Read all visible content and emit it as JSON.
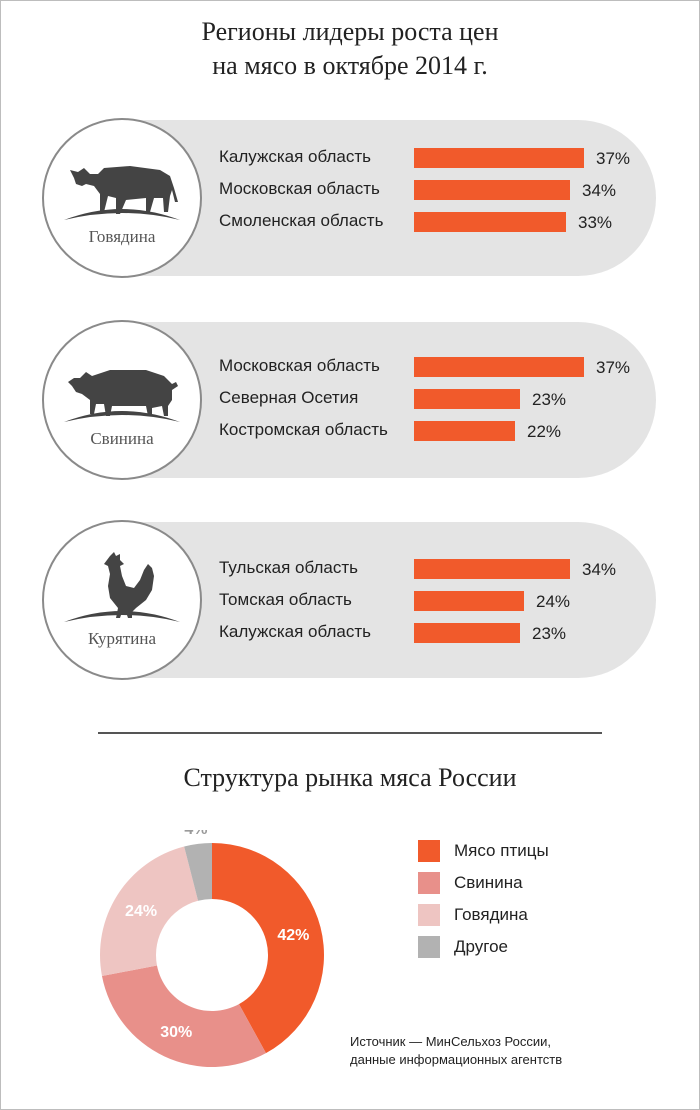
{
  "title": {
    "line1": "Регионы лидеры роста цен",
    "line2": "на мясо в октябре 2014 г."
  },
  "panels": [
    {
      "animal": "Говядина",
      "icon": "cow-icon",
      "rows": [
        {
          "region": "Калужская область",
          "pct": "37%",
          "value": 37
        },
        {
          "region": "Московская область",
          "pct": "34%",
          "value": 34
        },
        {
          "region": "Смоленская область",
          "pct": "33%",
          "value": 33
        }
      ]
    },
    {
      "animal": "Свинина",
      "icon": "pig-icon",
      "rows": [
        {
          "region": "Московская область",
          "pct": "37%",
          "value": 37
        },
        {
          "region": "Северная Осетия",
          "pct": "23%",
          "value": 23
        },
        {
          "region": "Костромская область",
          "pct": "22%",
          "value": 22
        }
      ]
    },
    {
      "animal": "Курятина",
      "icon": "rooster-icon",
      "rows": [
        {
          "region": "Тульская область",
          "pct": "34%",
          "value": 34
        },
        {
          "region": "Томская область",
          "pct": "24%",
          "value": 24
        },
        {
          "region": "Калужская область",
          "pct": "23%",
          "value": 23
        }
      ]
    }
  ],
  "market": {
    "title": "Структура рынка мяса России",
    "legend": [
      {
        "label": "Мясо птицы",
        "color": "#f15a2b"
      },
      {
        "label": "Свинина",
        "color": "#e8908a"
      },
      {
        "label": "Говядина",
        "color": "#eec5c2"
      },
      {
        "label": "Другое",
        "color": "#b2b2b2"
      }
    ],
    "source_line1": "Источник — МинСельхоз России,",
    "source_line2": "данные информационных агентств"
  },
  "chart_data": [
    {
      "type": "bar",
      "title": "Говядина",
      "categories": [
        "Калужская область",
        "Московская область",
        "Смоленская область"
      ],
      "values": [
        37,
        34,
        33
      ],
      "unit": "%"
    },
    {
      "type": "bar",
      "title": "Свинина",
      "categories": [
        "Московская область",
        "Северная Осетия",
        "Костромская область"
      ],
      "values": [
        37,
        23,
        22
      ],
      "unit": "%"
    },
    {
      "type": "bar",
      "title": "Курятина",
      "categories": [
        "Тульская область",
        "Томская область",
        "Калужская область"
      ],
      "values": [
        34,
        24,
        23
      ],
      "unit": "%"
    },
    {
      "type": "pie",
      "title": "Структура рынка мяса России",
      "categories": [
        "Мясо птицы",
        "Свинина",
        "Говядина",
        "Другое"
      ],
      "values": [
        42,
        30,
        24,
        4
      ],
      "labels": [
        "42%",
        "30%",
        "24%",
        "4%"
      ],
      "colors": [
        "#f15a2b",
        "#e8908a",
        "#eec5c2",
        "#b2b2b2"
      ],
      "label_colors": [
        "#ffffff",
        "#ffffff",
        "#ffffff",
        "#9a9a9a"
      ],
      "donut": true
    }
  ]
}
